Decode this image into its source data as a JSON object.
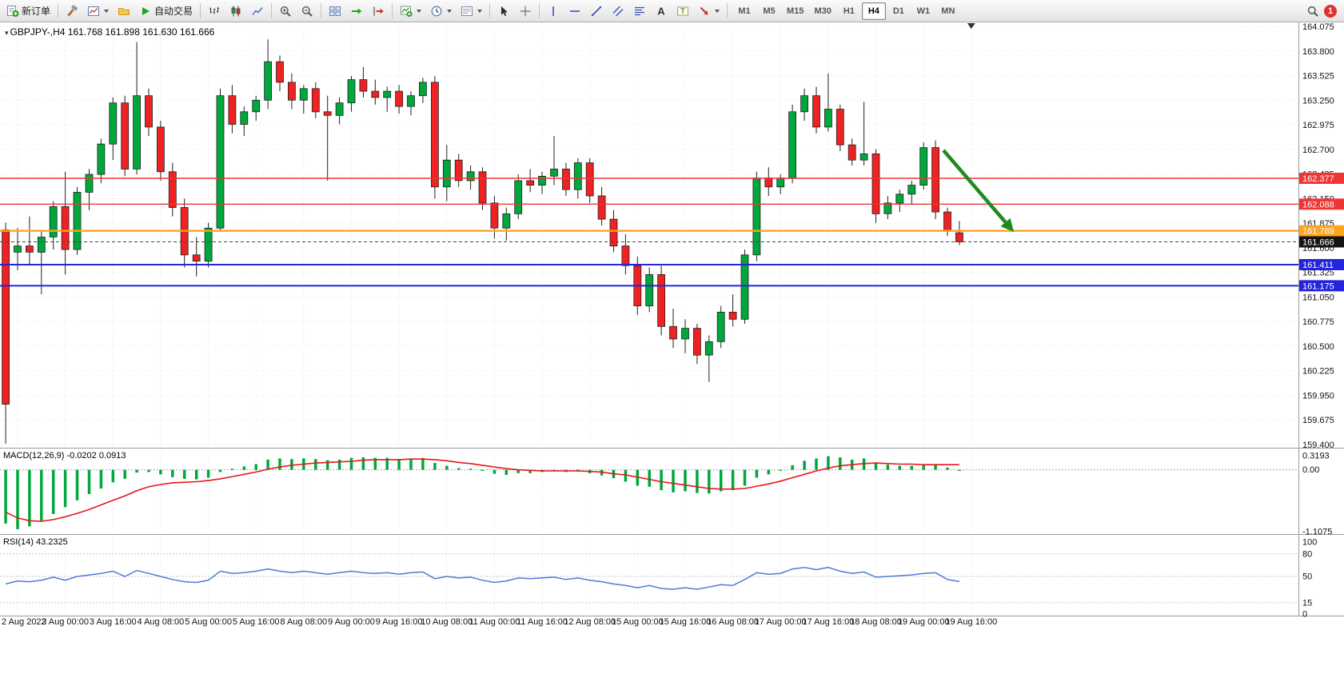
{
  "toolbar": {
    "new_order_label": "新订单",
    "autotrading_label": "自动交易",
    "timeframes": [
      {
        "label": "M1",
        "active": false
      },
      {
        "label": "M5",
        "active": false
      },
      {
        "label": "M15",
        "active": false
      },
      {
        "label": "M30",
        "active": false
      },
      {
        "label": "H1",
        "active": false
      },
      {
        "label": "H4",
        "active": true
      },
      {
        "label": "D1",
        "active": false
      },
      {
        "label": "W1",
        "active": false
      },
      {
        "label": "MN",
        "active": false
      }
    ],
    "notification_count": "1"
  },
  "chart": {
    "symbol_label": "GBPJPY-,H4 161.768 161.898 161.630 161.666",
    "ohlc_readout": {
      "open": "161.768",
      "high": "161.898",
      "low": "161.630",
      "close": "161.666"
    },
    "price_axis_ticks": [
      "164.075",
      "163.800",
      "163.525",
      "163.250",
      "162.975",
      "162.700",
      "162.425",
      "162.150",
      "161.875",
      "161.600",
      "161.325",
      "161.050",
      "160.775",
      "160.500",
      "160.225",
      "159.950",
      "159.675",
      "159.400"
    ],
    "time_axis_labels": [
      "2 Aug 2022",
      "3 Aug 00:00",
      "3 Aug 16:00",
      "4 Aug 08:00",
      "5 Aug 00:00",
      "5 Aug 16:00",
      "8 Aug 08:00",
      "9 Aug 00:00",
      "9 Aug 16:00",
      "10 Aug 08:00",
      "11 Aug 00:00",
      "11 Aug 16:00",
      "12 Aug 08:00",
      "15 Aug 00:00",
      "15 Aug 16:00",
      "16 Aug 08:00",
      "17 Aug 00:00",
      "17 Aug 16:00",
      "18 Aug 08:00",
      "19 Aug 00:00",
      "19 Aug 16:00"
    ],
    "levels": [
      {
        "name": "resistance-line-upper",
        "label": "162.377",
        "value": 162.377,
        "color": "#f03535",
        "width": 1.4
      },
      {
        "name": "resistance-line-lower",
        "label": "162.088",
        "value": 162.088,
        "color": "#f03535",
        "width": 1.4
      },
      {
        "name": "pivot-line",
        "label": "161.789",
        "value": 161.789,
        "color": "#ffa41e",
        "width": 2.4
      },
      {
        "name": "current-price-line",
        "label": "161.666",
        "value": 161.666,
        "color": "#454545",
        "width": 1,
        "dash": "4 3",
        "tag_color": "#141414"
      },
      {
        "name": "support-line-upper",
        "label": "161.411",
        "value": 161.411,
        "color": "#2424dd",
        "width": 2
      },
      {
        "name": "support-line-lower",
        "label": "161.175",
        "value": 161.175,
        "color": "#2424dd",
        "width": 2
      }
    ],
    "arrow_annotation": {
      "from": [
        1180,
        160
      ],
      "to": [
        1268,
        262
      ],
      "color": "#1f8a1f"
    }
  },
  "chart_data": {
    "type": "candlestick",
    "symbol": "GBPJPY-",
    "timeframe": "H4",
    "price_range": [
      159.4,
      164.075
    ],
    "ohlc": [
      [
        161.8,
        161.88,
        159.41,
        159.85
      ],
      [
        161.55,
        161.82,
        161.35,
        161.62
      ],
      [
        161.62,
        161.95,
        161.4,
        161.55
      ],
      [
        161.55,
        161.78,
        161.08,
        161.72
      ],
      [
        161.72,
        162.12,
        161.58,
        162.06
      ],
      [
        162.06,
        162.45,
        161.3,
        161.58
      ],
      [
        161.58,
        162.28,
        161.52,
        162.22
      ],
      [
        162.22,
        162.48,
        162.02,
        162.42
      ],
      [
        162.42,
        162.82,
        162.32,
        162.76
      ],
      [
        162.76,
        163.28,
        162.58,
        163.22
      ],
      [
        163.22,
        163.3,
        162.4,
        162.48
      ],
      [
        162.48,
        163.9,
        162.42,
        163.3
      ],
      [
        163.3,
        163.38,
        162.85,
        162.95
      ],
      [
        162.95,
        163.02,
        162.35,
        162.45
      ],
      [
        162.45,
        162.55,
        161.95,
        162.05
      ],
      [
        162.05,
        162.15,
        161.38,
        161.52
      ],
      [
        161.52,
        161.72,
        161.28,
        161.45
      ],
      [
        161.45,
        161.88,
        161.38,
        161.82
      ],
      [
        161.82,
        163.38,
        161.78,
        163.3
      ],
      [
        163.3,
        163.42,
        162.88,
        162.98
      ],
      [
        162.98,
        163.18,
        162.85,
        163.12
      ],
      [
        163.12,
        163.3,
        163.02,
        163.25
      ],
      [
        163.25,
        163.93,
        163.15,
        163.68
      ],
      [
        163.68,
        163.75,
        163.35,
        163.45
      ],
      [
        163.45,
        163.55,
        163.15,
        163.25
      ],
      [
        163.25,
        163.42,
        163.1,
        163.38
      ],
      [
        163.38,
        163.45,
        163.05,
        163.12
      ],
      [
        163.12,
        163.3,
        162.35,
        163.08
      ],
      [
        163.08,
        163.28,
        162.98,
        163.22
      ],
      [
        163.22,
        163.52,
        163.12,
        163.48
      ],
      [
        163.48,
        163.62,
        163.28,
        163.35
      ],
      [
        163.35,
        163.48,
        163.2,
        163.28
      ],
      [
        163.28,
        163.4,
        163.12,
        163.35
      ],
      [
        163.35,
        163.42,
        163.1,
        163.18
      ],
      [
        163.18,
        163.35,
        163.08,
        163.3
      ],
      [
        163.3,
        163.5,
        163.22,
        163.45
      ],
      [
        163.45,
        163.52,
        162.15,
        162.28
      ],
      [
        162.28,
        162.75,
        162.12,
        162.58
      ],
      [
        162.58,
        162.65,
        162.28,
        162.35
      ],
      [
        162.35,
        162.52,
        162.25,
        162.45
      ],
      [
        162.45,
        162.5,
        162.02,
        162.1
      ],
      [
        162.1,
        162.18,
        161.7,
        161.82
      ],
      [
        161.82,
        162.05,
        161.68,
        161.98
      ],
      [
        161.98,
        162.42,
        161.92,
        162.35
      ],
      [
        162.35,
        162.48,
        162.22,
        162.3
      ],
      [
        162.3,
        162.45,
        162.2,
        162.4
      ],
      [
        162.4,
        162.85,
        162.3,
        162.48
      ],
      [
        162.48,
        162.55,
        162.18,
        162.25
      ],
      [
        162.25,
        162.6,
        162.15,
        162.55
      ],
      [
        162.55,
        162.6,
        162.1,
        162.18
      ],
      [
        162.18,
        162.28,
        161.85,
        161.92
      ],
      [
        161.92,
        162.02,
        161.55,
        161.62
      ],
      [
        161.62,
        161.75,
        161.3,
        161.4
      ],
      [
        161.4,
        161.5,
        160.85,
        160.95
      ],
      [
        160.95,
        161.38,
        160.88,
        161.3
      ],
      [
        161.3,
        161.4,
        160.62,
        160.72
      ],
      [
        160.72,
        160.92,
        160.48,
        160.58
      ],
      [
        160.58,
        160.8,
        160.42,
        160.7
      ],
      [
        160.7,
        160.75,
        160.3,
        160.4
      ],
      [
        160.4,
        160.62,
        160.1,
        160.55
      ],
      [
        160.55,
        160.95,
        160.48,
        160.88
      ],
      [
        160.88,
        161.08,
        160.72,
        160.8
      ],
      [
        160.8,
        161.58,
        160.75,
        161.52
      ],
      [
        161.52,
        162.45,
        161.45,
        162.38
      ],
      [
        162.38,
        162.5,
        162.18,
        162.28
      ],
      [
        162.28,
        162.42,
        162.2,
        162.38
      ],
      [
        162.38,
        163.2,
        162.32,
        163.12
      ],
      [
        163.12,
        163.38,
        163.02,
        163.3
      ],
      [
        163.3,
        163.4,
        162.88,
        162.95
      ],
      [
        162.95,
        163.55,
        162.9,
        163.15
      ],
      [
        163.15,
        163.2,
        162.68,
        162.75
      ],
      [
        162.75,
        162.82,
        162.52,
        162.58
      ],
      [
        162.58,
        163.23,
        162.52,
        162.65
      ],
      [
        162.65,
        162.7,
        161.88,
        161.98
      ],
      [
        161.98,
        162.18,
        161.92,
        162.1
      ],
      [
        162.1,
        162.25,
        162.0,
        162.2
      ],
      [
        162.2,
        162.35,
        162.08,
        162.3
      ],
      [
        162.3,
        162.78,
        162.25,
        162.72
      ],
      [
        162.72,
        162.8,
        161.92,
        162.0
      ],
      [
        162.0,
        162.05,
        161.73,
        161.79
      ],
      [
        161.768,
        161.898,
        161.63,
        161.666
      ]
    ],
    "indicators": {
      "macd": {
        "label": "MACD(12,26,9) -0.0202 0.0913",
        "axis_labels": [
          "0.3193",
          "0.00",
          "-1.1075"
        ],
        "axis_values": [
          0.3193,
          0,
          -1.1075
        ],
        "range": [
          -1.1075,
          0.3193
        ],
        "histogram": [
          -0.95,
          -1.05,
          -1.0,
          -0.9,
          -0.78,
          -0.66,
          -0.54,
          -0.43,
          -0.33,
          -0.22,
          -0.16,
          -0.05,
          -0.04,
          -0.08,
          -0.13,
          -0.16,
          -0.17,
          -0.14,
          -0.04,
          0.02,
          0.06,
          0.1,
          0.18,
          0.2,
          0.19,
          0.2,
          0.19,
          0.17,
          0.18,
          0.21,
          0.22,
          0.21,
          0.21,
          0.19,
          0.19,
          0.21,
          0.12,
          0.07,
          0.03,
          0.02,
          -0.02,
          -0.07,
          -0.09,
          -0.06,
          -0.06,
          -0.04,
          -0.02,
          -0.04,
          -0.03,
          -0.06,
          -0.1,
          -0.15,
          -0.21,
          -0.28,
          -0.3,
          -0.36,
          -0.4,
          -0.38,
          -0.41,
          -0.42,
          -0.38,
          -0.36,
          -0.28,
          -0.14,
          -0.08,
          -0.02,
          0.08,
          0.16,
          0.2,
          0.24,
          0.22,
          0.18,
          0.2,
          0.13,
          0.09,
          0.07,
          0.07,
          0.08,
          0.09,
          0.04,
          -0.02
        ],
        "signal": [
          -0.75,
          -0.85,
          -0.9,
          -0.91,
          -0.88,
          -0.83,
          -0.77,
          -0.7,
          -0.62,
          -0.54,
          -0.46,
          -0.37,
          -0.3,
          -0.26,
          -0.23,
          -0.22,
          -0.21,
          -0.19,
          -0.16,
          -0.12,
          -0.08,
          -0.04,
          0.01,
          0.05,
          0.08,
          0.1,
          0.12,
          0.13,
          0.14,
          0.15,
          0.17,
          0.18,
          0.18,
          0.18,
          0.19,
          0.19,
          0.18,
          0.16,
          0.13,
          0.11,
          0.08,
          0.05,
          0.02,
          0.0,
          -0.01,
          -0.02,
          -0.02,
          -0.02,
          -0.02,
          -0.03,
          -0.04,
          -0.07,
          -0.09,
          -0.13,
          -0.17,
          -0.21,
          -0.24,
          -0.27,
          -0.3,
          -0.33,
          -0.34,
          -0.34,
          -0.33,
          -0.29,
          -0.25,
          -0.2,
          -0.14,
          -0.08,
          -0.02,
          0.03,
          0.07,
          0.09,
          0.11,
          0.12,
          0.11,
          0.1,
          0.1,
          0.09,
          0.09,
          0.09,
          0.09
        ]
      },
      "rsi": {
        "label": "RSI(14) 43.2325",
        "axis_labels": [
          "100",
          "80",
          "50",
          "15",
          "0"
        ],
        "axis_values": [
          100,
          80,
          50,
          15,
          0
        ],
        "levels": [
          80,
          50,
          15
        ],
        "values": [
          40,
          44,
          43,
          45,
          49,
          45,
          50,
          52,
          54,
          57,
          50,
          58,
          54,
          50,
          46,
          43,
          42,
          45,
          57,
          54,
          55,
          57,
          60,
          57,
          55,
          57,
          55,
          53,
          55,
          57,
          55,
          54,
          55,
          53,
          55,
          56,
          47,
          50,
          48,
          49,
          45,
          42,
          44,
          48,
          47,
          48,
          49,
          46,
          48,
          45,
          43,
          40,
          38,
          35,
          38,
          34,
          33,
          35,
          33,
          36,
          39,
          38,
          46,
          55,
          53,
          54,
          60,
          62,
          59,
          62,
          57,
          54,
          56,
          49,
          50,
          51,
          52,
          54,
          55,
          46,
          43.23
        ]
      }
    }
  },
  "colors": {
    "up": "#00a73c",
    "down": "#ee2222",
    "macd_bar": "#00a73c",
    "macd_signal": "#e81717",
    "rsi_line": "#4f7bd9",
    "grid": "#e1e1e1",
    "axis_text": "#111111",
    "separator": "#9a9a9a"
  },
  "icons": {
    "new-order-icon": "document-with-green-plus",
    "expert-advisors-icon": "hammer",
    "new-chart-icon": "chart-window",
    "profiles-icon": "folder",
    "autotrading-icon": "green-play-triangle",
    "bars-icon": "ohlc-bars",
    "candles-icon": "two-candles",
    "line-chart-icon": "zigzag-line",
    "zoom-in-icon": "magnifier-plus",
    "zoom-out-icon": "magnifier-minus",
    "tile-windows-icon": "four-tiles",
    "autoscroll-icon": "green-right-arrow",
    "chart-shift-icon": "red-right-arrow-from-bar",
    "indicators-icon": "chart-with-green-plus",
    "periods-icon": "clock",
    "templates-icon": "document-rows",
    "cursor-icon": "pointer-arrow",
    "crosshair-icon": "crosshair",
    "vertical-line-icon": "vertical-line",
    "horizontal-line-icon": "horizontal-line",
    "trendline-icon": "diagonal-line",
    "channel-icon": "parallel-lines",
    "fibonacci-icon": "stacked-lines",
    "text-icon": "letter-A",
    "text-label-icon": "boxed-T",
    "arrows-tool-icon": "red-diagonal-arrow",
    "search-icon": "magnifier",
    "chart-shift-marker": "black-down-triangle",
    "symbol-marker-icon": "small-down-triangle"
  }
}
